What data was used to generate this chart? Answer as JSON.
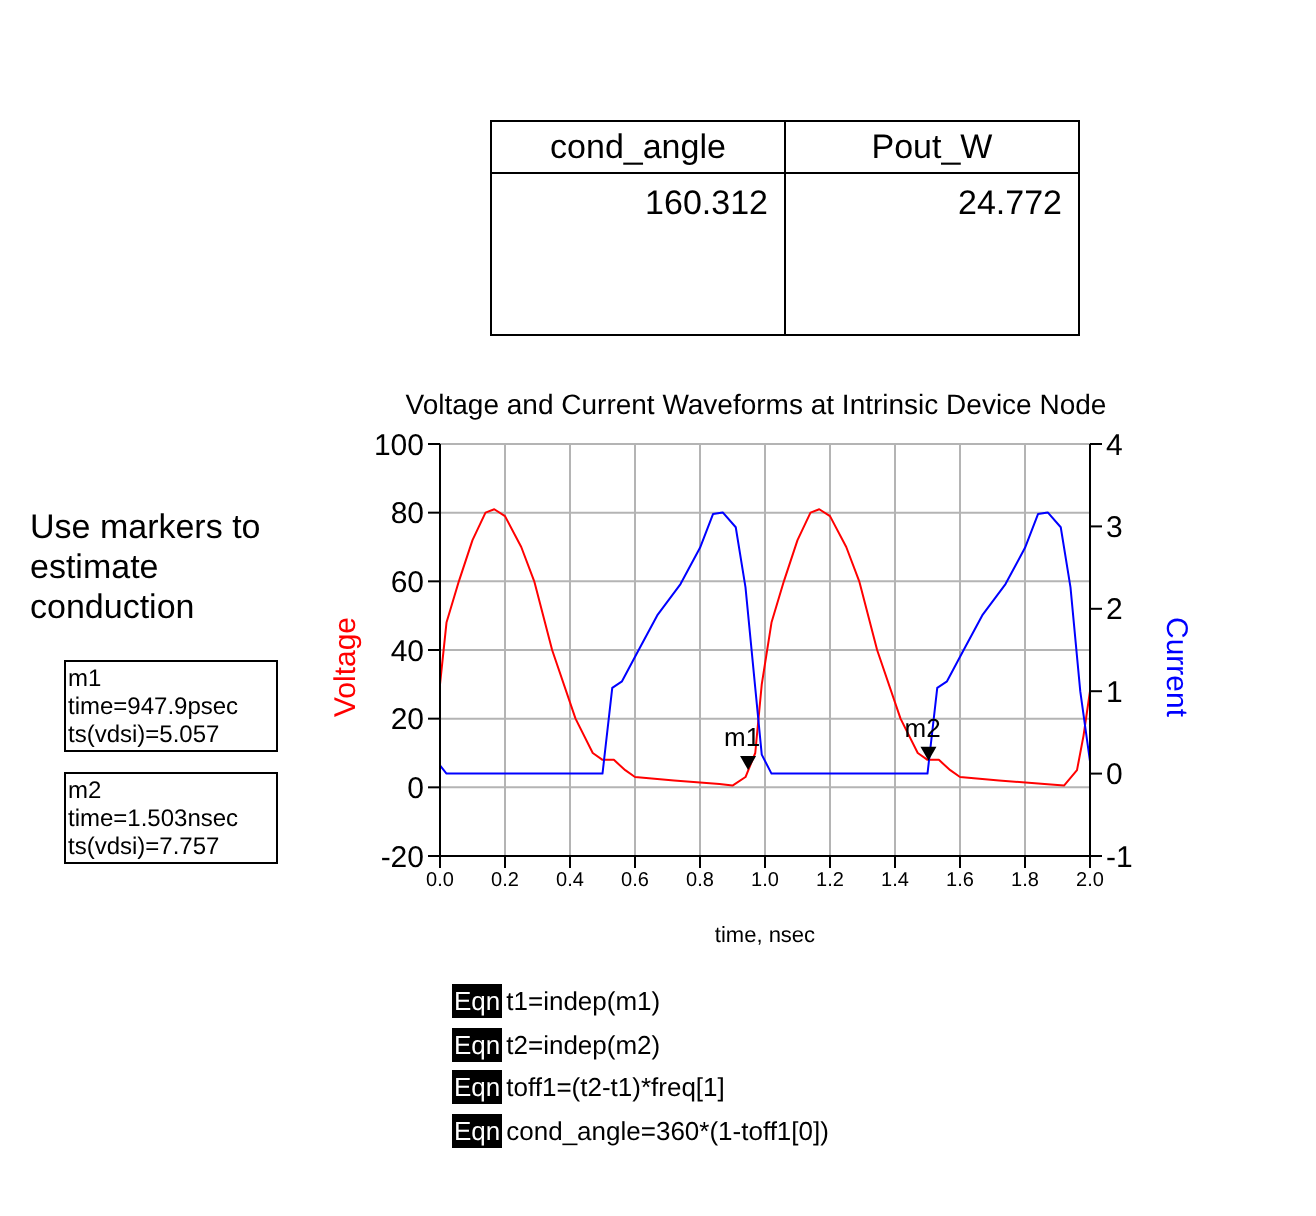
{
  "chart_data": {
    "type": "line",
    "title": "Voltage and Current Waveforms at Intrinsic Device Node",
    "xlabel": "time, nsec",
    "ylabel": "Voltage",
    "y2label": "Current",
    "xlim": [
      0,
      2
    ],
    "xticks": [
      {
        "value": 0,
        "label": "0.0"
      },
      {
        "value": 0.2,
        "label": "0.2"
      },
      {
        "value": 0.4,
        "label": "0.4"
      },
      {
        "value": 0.6,
        "label": "0.6"
      },
      {
        "value": 0.8,
        "label": "0.8"
      },
      {
        "value": 1,
        "label": "1.0"
      },
      {
        "value": 1.2,
        "label": "1.2"
      },
      {
        "value": 1.4,
        "label": "1.4"
      },
      {
        "value": 1.6,
        "label": "1.6"
      },
      {
        "value": 1.8,
        "label": "1.8"
      },
      {
        "value": 2,
        "label": "2.0"
      }
    ],
    "ylim": [
      -20,
      100
    ],
    "yticks": [
      -20,
      0,
      20,
      40,
      60,
      80,
      100
    ],
    "y2lim": [
      -1,
      4
    ],
    "y2ticks": [
      -1,
      0,
      1,
      2,
      3,
      4
    ],
    "grid": true,
    "legend": false,
    "marker": "none",
    "line_style": "solid",
    "series": [
      {
        "color": "#ff0000",
        "x": [
          0,
          0.02,
          0.058,
          0.1,
          0.14,
          0.167,
          0.2,
          0.25,
          0.29,
          0.345,
          0.417,
          0.47,
          0.5,
          0.535,
          0.57,
          0.6,
          0.72,
          0.86,
          0.9,
          0.94,
          0.97,
          0.99,
          1.02,
          1.058,
          1.1,
          1.14,
          1.167,
          1.2,
          1.25,
          1.29,
          1.345,
          1.417,
          1.47,
          1.5,
          1.535,
          1.57,
          1.6,
          1.72,
          1.86,
          1.92,
          1.96,
          1.98,
          2
        ],
        "values": [
          30,
          48,
          60,
          72,
          80,
          81,
          79,
          70,
          60,
          40,
          20,
          10,
          8,
          8,
          5,
          3,
          2,
          1,
          0.5,
          3,
          10,
          30,
          48,
          60,
          72,
          80,
          81,
          79,
          70,
          60,
          40,
          20,
          10,
          8,
          8,
          5,
          3,
          2,
          1,
          0.5,
          5,
          15,
          28
        ]
      },
      {
        "color": "#0000ff",
        "axis": "y2",
        "x": [
          0,
          0.02,
          0.5,
          0.53,
          0.56,
          0.61,
          0.67,
          0.74,
          0.8,
          0.84,
          0.87,
          0.91,
          0.94,
          0.97,
          0.99,
          1.02,
          1.5,
          1.53,
          1.56,
          1.61,
          1.67,
          1.74,
          1.8,
          1.84,
          1.87,
          1.91,
          1.94,
          1.97,
          2
        ],
        "values": [
          0.1,
          0,
          0,
          1.04,
          1.12,
          1.49,
          1.93,
          2.3,
          2.74,
          3.15,
          3.17,
          2.99,
          2.26,
          1.04,
          0.23,
          0,
          0,
          1.04,
          1.12,
          1.49,
          1.93,
          2.3,
          2.74,
          3.15,
          3.17,
          2.99,
          2.26,
          1.0,
          0.15
        ]
      }
    ],
    "annotations": [
      "cond_angle",
      "Pout_W",
      "160.312",
      "24.772",
      "Use markers to estimate conduction",
      "m1\ntime=947.9psec\nts(vdsi)=5.057",
      "m2\ntime=1.503nsec\nts(vdsi)=7.757",
      "Eqn t1=indep(m1)",
      "Eqn t2=indep(m2)",
      "Eqn toff1=(t2-t1)*freq[1]",
      "Eqn cond_angle=360*(1-toff1[0])",
      {
        "text": "m1",
        "x": 0.9479,
        "y": 5.057
      },
      {
        "text": "m2",
        "x": 1.503,
        "y": 7.757
      }
    ]
  }
}
